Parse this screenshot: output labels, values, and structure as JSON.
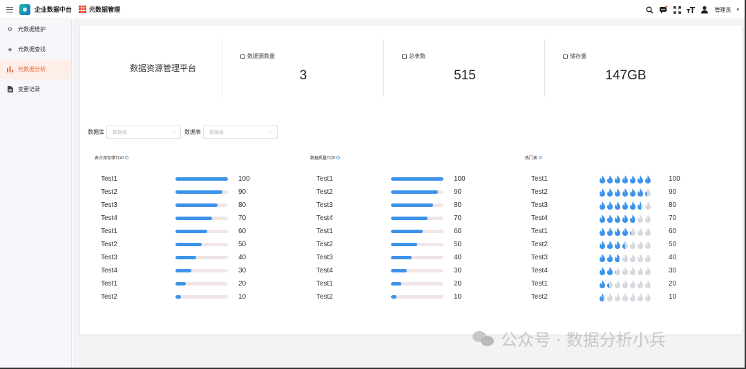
{
  "header": {
    "app_title": "企业数据中台",
    "module_title": "元数据管理",
    "user_label": "管理员",
    "icons": [
      "search-icon",
      "message-icon",
      "fullscreen-icon",
      "font-size-icon",
      "user-icon"
    ]
  },
  "sidebar": {
    "items": [
      {
        "label": "元数据维护",
        "icon": "gear-icon",
        "active": false
      },
      {
        "label": "元数据查找",
        "icon": "layers-icon",
        "active": false
      },
      {
        "label": "元数据分析",
        "icon": "bar-chart-icon",
        "active": true
      },
      {
        "label": "变更记录",
        "icon": "file-icon",
        "active": false
      }
    ]
  },
  "stats": {
    "platform_name": "数据资源管理平台",
    "items": [
      {
        "label": "数据源数量",
        "value": "3"
      },
      {
        "label": "总表数",
        "value": "515"
      },
      {
        "label": "储存量",
        "value": "147GB"
      }
    ]
  },
  "filters": {
    "database_label": "数据库",
    "database_placeholder": "数据库",
    "table_label": "数据表",
    "table_placeholder": "数据表"
  },
  "panels": [
    {
      "title": "表占用存储TOP",
      "type": "bar",
      "rows": [
        {
          "name": "Test1",
          "value": 100
        },
        {
          "name": "Test2",
          "value": 90
        },
        {
          "name": "Test3",
          "value": 80
        },
        {
          "name": "Test4",
          "value": 70
        },
        {
          "name": "Test1",
          "value": 60
        },
        {
          "name": "Test2",
          "value": 50
        },
        {
          "name": "Test3",
          "value": 40
        },
        {
          "name": "Test4",
          "value": 30
        },
        {
          "name": "Test1",
          "value": 20
        },
        {
          "name": "Test2",
          "value": 10
        }
      ]
    },
    {
      "title": "数据质量TOP",
      "type": "bar",
      "rows": [
        {
          "name": "Test1",
          "value": 100
        },
        {
          "name": "Test2",
          "value": 90
        },
        {
          "name": "Test3",
          "value": 80
        },
        {
          "name": "Test4",
          "value": 70
        },
        {
          "name": "Test1",
          "value": 60
        },
        {
          "name": "Test2",
          "value": 50
        },
        {
          "name": "Test3",
          "value": 40
        },
        {
          "name": "Test4",
          "value": 30
        },
        {
          "name": "Test1",
          "value": 20
        },
        {
          "name": "Test2",
          "value": 10
        }
      ]
    },
    {
      "title": "热门表",
      "type": "flame",
      "rows": [
        {
          "name": "Test1",
          "value": 100
        },
        {
          "name": "Test2",
          "value": 90
        },
        {
          "name": "Test3",
          "value": 80
        },
        {
          "name": "Test4",
          "value": 70
        },
        {
          "name": "Test1",
          "value": 60
        },
        {
          "name": "Test2",
          "value": 50
        },
        {
          "name": "Test3",
          "value": 40
        },
        {
          "name": "Test4",
          "value": 30
        },
        {
          "name": "Test1",
          "value": 20
        },
        {
          "name": "Test2",
          "value": 10
        }
      ]
    }
  ],
  "colors": {
    "accent": "#e8673c",
    "bar_fill": "#3d93ea",
    "bar_track": "#f0e6e6",
    "flame_on": "#3d93ea",
    "flame_off": "#d6d9de"
  },
  "watermark": {
    "text": "公众号 · 数据分析小兵"
  }
}
